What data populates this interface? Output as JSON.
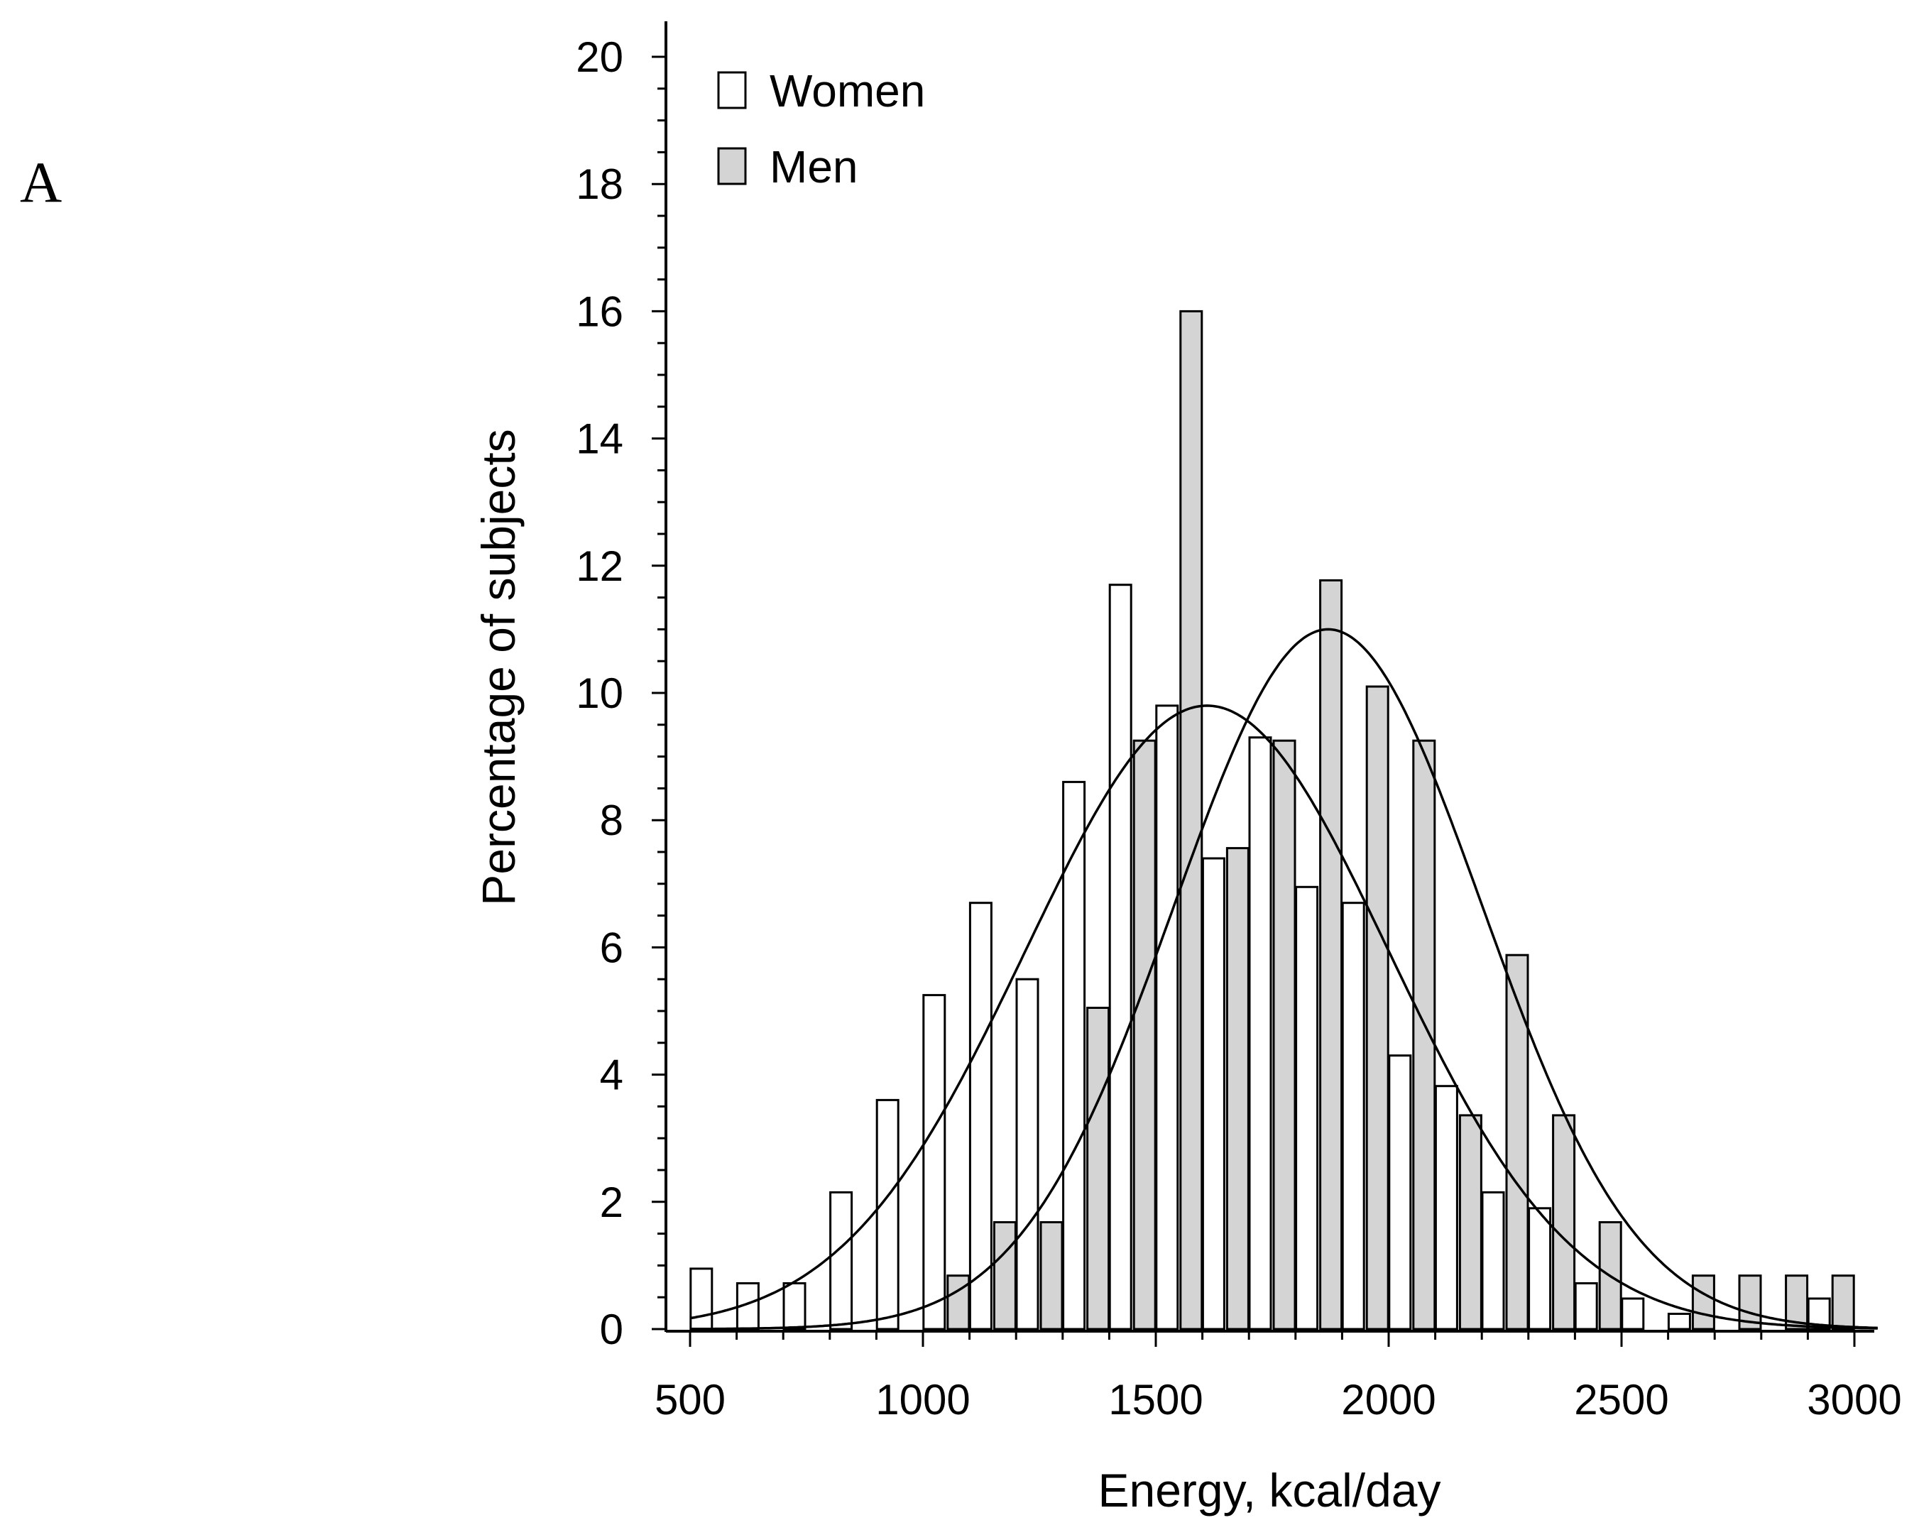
{
  "panel_label": "A",
  "chart_data": {
    "type": "bar",
    "title": "",
    "xlabel": "Energy, kcal/day",
    "ylabel": "Percentage of subjects",
    "xlim": [
      500,
      3050
    ],
    "ylim": [
      0,
      20
    ],
    "xticks": [
      500,
      1000,
      1500,
      2000,
      2500,
      3000
    ],
    "yticks": [
      0,
      2,
      4,
      6,
      8,
      10,
      12,
      14,
      16,
      18,
      20
    ],
    "bin_width": 100,
    "legend": {
      "position": "top-left",
      "entries": [
        "Women",
        "Men"
      ]
    },
    "categories": [
      550,
      650,
      750,
      850,
      950,
      1050,
      1150,
      1250,
      1350,
      1450,
      1550,
      1650,
      1750,
      1850,
      1950,
      2050,
      2150,
      2250,
      2350,
      2450,
      2550,
      2650,
      2750,
      2850,
      2950
    ],
    "series": [
      {
        "name": "Women",
        "color": "#ffffff",
        "bin_centers": [
          550,
          650,
          750,
          850,
          950,
          1050,
          1150,
          1250,
          1350,
          1450,
          1550,
          1650,
          1750,
          1850,
          1950,
          2050,
          2150,
          2250,
          2350,
          2450,
          2550,
          2650,
          2750,
          2850,
          2950
        ],
        "values": [
          0.95,
          0.72,
          0.72,
          2.15,
          3.6,
          5.25,
          6.7,
          5.5,
          8.6,
          11.7,
          9.8,
          7.4,
          9.3,
          6.95,
          6.7,
          4.3,
          3.82,
          2.15,
          1.9,
          0.72,
          0.48,
          0.24,
          0,
          0,
          0.48
        ]
      },
      {
        "name": "Men",
        "color": "#d4d4d4",
        "bin_centers": [
          550,
          650,
          750,
          850,
          950,
          1050,
          1150,
          1250,
          1350,
          1450,
          1550,
          1650,
          1750,
          1850,
          1950,
          2050,
          2150,
          2250,
          2350,
          2450,
          2550,
          2650,
          2750,
          2850,
          2950
        ],
        "values": [
          0,
          0,
          0,
          0,
          0,
          0.84,
          1.68,
          1.68,
          5.05,
          9.25,
          16.0,
          7.56,
          9.25,
          11.77,
          10.1,
          9.25,
          3.36,
          5.88,
          3.36,
          1.68,
          0,
          0.84,
          0.84,
          0.84,
          0.84
        ]
      }
    ],
    "fitted_curves": [
      {
        "name": "Women normal fit",
        "mean": 1610,
        "peak": 9.8,
        "sd": 390
      },
      {
        "name": "Men normal fit",
        "mean": 1870,
        "peak": 11.0,
        "sd": 330
      }
    ]
  }
}
